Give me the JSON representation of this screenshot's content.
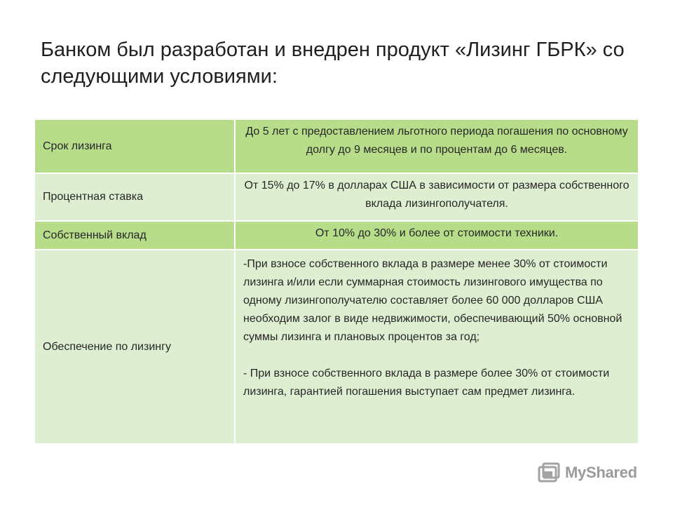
{
  "slide": {
    "title_line_1": "Банком был разработан и внедрен продукт «Лизинг ГБРК» со",
    "title_line_2": "следующими условиями:"
  },
  "table": {
    "rows": [
      {
        "label": "Срок лизинга",
        "value": "До 5 лет с предоставлением льготного периода погашения по основному долгу до 9 месяцев и по процентам до 6 месяцев."
      },
      {
        "label": "Процентная ставка",
        "value": "От 15% до 17% в долларах США в зависимости от размера собственного вклада лизингополучателя."
      },
      {
        "label": "Собственный вклад",
        "value": "От 10% до 30% и более от стоимости техники."
      },
      {
        "label": "Обеспечение по лизингу",
        "paragraphs": [
          "-При взносе собственного вклада в размере менее 30% от стоимости лизинга и/или если суммарная стоимость лизингового имущества по одному лизингополучателю составляет более 60 000 долларов США необходим залог в виде недвижимости, обеспечивающий 50% основной суммы лизинга и плановых процентов за год;",
          "- При взносе собственного вклада в размере более 30% от стоимости лизинга, гарантией погашения выступает сам предмет лизинга."
        ]
      }
    ],
    "colors": {
      "dark_row": "#b7dd8a",
      "light_row": "#deefd1"
    }
  },
  "watermark": {
    "icon": "myshared-logo-icon",
    "text": "MyShared"
  }
}
